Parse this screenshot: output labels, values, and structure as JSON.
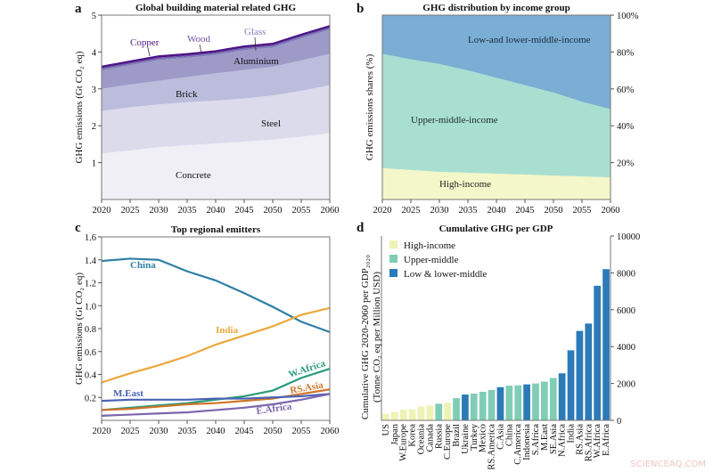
{
  "watermark": "SCIENCEAQ.COM",
  "chart_data": [
    {
      "panel": "a",
      "type": "area",
      "stacked": true,
      "title": "Global building material related GHG",
      "xlabel": "",
      "ylabel": "GHG emissions (Gt CO₂ eq)",
      "x": [
        2020,
        2025,
        2030,
        2035,
        2040,
        2045,
        2050,
        2055,
        2060
      ],
      "xticks": [
        "2020",
        "2025",
        "2030",
        "2035",
        "2040",
        "2045",
        "2050",
        "2055",
        "2060"
      ],
      "yticks": [
        "1",
        "2",
        "3",
        "4",
        "5"
      ],
      "ylim": [
        0,
        5
      ],
      "series": [
        {
          "name": "Concrete",
          "color": "#f0eff6",
          "values": [
            1.25,
            1.33,
            1.42,
            1.47,
            1.52,
            1.57,
            1.62,
            1.7,
            1.8
          ]
        },
        {
          "name": "Steel",
          "color": "#dcdbeb",
          "values": [
            1.15,
            1.17,
            1.16,
            1.17,
            1.16,
            1.17,
            1.2,
            1.25,
            1.3
          ]
        },
        {
          "name": "Brick",
          "color": "#bcbddc",
          "values": [
            0.6,
            0.62,
            0.64,
            0.68,
            0.74,
            0.77,
            0.78,
            0.82,
            0.85
          ]
        },
        {
          "name": "Aluminium",
          "color": "#9e9ac8",
          "values": [
            0.5,
            0.52,
            0.56,
            0.52,
            0.5,
            0.54,
            0.52,
            0.6,
            0.65
          ]
        },
        {
          "name": "Glass",
          "color": "#807dba",
          "values": [
            0.04,
            0.04,
            0.04,
            0.04,
            0.04,
            0.04,
            0.04,
            0.04,
            0.04
          ]
        },
        {
          "name": "Wood",
          "color": "#6a51a3",
          "values": [
            0.03,
            0.03,
            0.03,
            0.03,
            0.03,
            0.03,
            0.03,
            0.03,
            0.03
          ]
        },
        {
          "name": "Copper",
          "color": "#4a1486",
          "values": [
            0.06,
            0.06,
            0.06,
            0.06,
            0.06,
            0.06,
            0.06,
            0.06,
            0.06
          ]
        }
      ]
    },
    {
      "panel": "b",
      "type": "area",
      "stacked": true,
      "title": "GHG distribution by income group",
      "ylabel": "GHG emissions shares (%)",
      "x": [
        2020,
        2025,
        2030,
        2035,
        2040,
        2045,
        2050,
        2055,
        2060
      ],
      "xticks": [
        "2020",
        "2025",
        "2030",
        "2035",
        "2040",
        "2045",
        "2050",
        "2055",
        "2060"
      ],
      "yticks": [
        "20%",
        "40%",
        "60%",
        "80%",
        "100%"
      ],
      "ylim": [
        0,
        100
      ],
      "yaxis_side": "right",
      "series": [
        {
          "name": "High-income",
          "color": "#f4f7c9",
          "values": [
            17,
            16,
            15,
            14.5,
            14,
            13.5,
            13,
            12.5,
            12
          ]
        },
        {
          "name": "Upper-middle-income",
          "color": "#a9dfd0",
          "values": [
            62,
            60,
            58.5,
            55.5,
            52,
            48.5,
            45,
            40.5,
            37
          ]
        },
        {
          "name": "Low-and lower-middle-income",
          "color": "#7aaed4",
          "values": [
            21,
            24,
            26.5,
            30,
            34,
            38,
            42,
            47,
            51
          ]
        }
      ]
    },
    {
      "panel": "c",
      "type": "line",
      "title": "Top regional emitters",
      "ylabel": "GHG emissions (Gt CO₂ eq)",
      "x": [
        2020,
        2025,
        2030,
        2035,
        2040,
        2045,
        2050,
        2055,
        2060
      ],
      "xticks": [
        "2020",
        "2025",
        "2030",
        "2035",
        "2040",
        "2045",
        "2050",
        "2055",
        "2060"
      ],
      "yticks": [
        "0.2",
        "0.4",
        "0.6",
        "0.8",
        "1.0",
        "1.2",
        "1.4",
        "1.6"
      ],
      "ylim": [
        0,
        1.6
      ],
      "series": [
        {
          "name": "China",
          "color": "#2f7fa6",
          "values": [
            1.39,
            1.41,
            1.4,
            1.3,
            1.22,
            1.11,
            0.99,
            0.86,
            0.77
          ]
        },
        {
          "name": "India",
          "color": "#eba83a",
          "values": [
            0.33,
            0.41,
            0.48,
            0.56,
            0.66,
            0.74,
            0.82,
            0.92,
            0.98
          ]
        },
        {
          "name": "W.Africa",
          "color": "#2a9a78",
          "values": [
            0.09,
            0.11,
            0.13,
            0.15,
            0.18,
            0.21,
            0.26,
            0.37,
            0.45
          ]
        },
        {
          "name": "RS.Asia",
          "color": "#d0752a",
          "values": [
            0.09,
            0.1,
            0.12,
            0.14,
            0.15,
            0.17,
            0.19,
            0.23,
            0.27
          ]
        },
        {
          "name": "M.East",
          "color": "#4a62b5",
          "values": [
            0.17,
            0.18,
            0.18,
            0.18,
            0.19,
            0.19,
            0.2,
            0.21,
            0.23
          ]
        },
        {
          "name": "E.Africa",
          "color": "#7a66ad",
          "values": [
            0.04,
            0.05,
            0.06,
            0.07,
            0.09,
            0.11,
            0.14,
            0.18,
            0.23
          ]
        }
      ]
    },
    {
      "panel": "d",
      "type": "bar",
      "title": "Cumulative GHG per GDP",
      "ylabel": [
        "Cumulative GHG 2020-2060 per GDP₂₀₂₀",
        "(Tonne CO₂ eq per Million USD)"
      ],
      "ylim": [
        0,
        10000
      ],
      "yticks": [
        "0",
        "2000",
        "4000",
        "6000",
        "8000",
        "10000"
      ],
      "yaxis_side": "right",
      "legend": {
        "position": "top-left",
        "entries": [
          {
            "name": "High-income",
            "color": "#eef3b4"
          },
          {
            "name": "Upper-middle",
            "color": "#7fcdb5"
          },
          {
            "name": "Low & lower-middle",
            "color": "#2c7ab8"
          }
        ]
      },
      "categories": [
        "US",
        "Japan",
        "W.Europe",
        "Korea",
        "Oceania",
        "Canada",
        "Russia",
        "C.Europe",
        "Brazil",
        "Ukraine",
        "Turkey",
        "Mexico",
        "RS.America",
        "C.Asia",
        "China",
        "C.America",
        "Indonesia",
        "S.Africa",
        "M.East",
        "SE.Asia",
        "N.Africa",
        "India",
        "RS.Asia",
        "RS.Africa",
        "W.Africa",
        "E.Africa"
      ],
      "groups": [
        0,
        0,
        0,
        0,
        0,
        0,
        1,
        0,
        1,
        2,
        1,
        1,
        1,
        2,
        1,
        1,
        2,
        1,
        1,
        1,
        2,
        2,
        2,
        2,
        2,
        2
      ],
      "values": [
        350,
        450,
        580,
        600,
        750,
        800,
        900,
        950,
        1200,
        1400,
        1450,
        1550,
        1650,
        1800,
        1880,
        1900,
        1950,
        2000,
        2100,
        2300,
        2550,
        3800,
        4850,
        5250,
        7300,
        8200
      ]
    }
  ]
}
